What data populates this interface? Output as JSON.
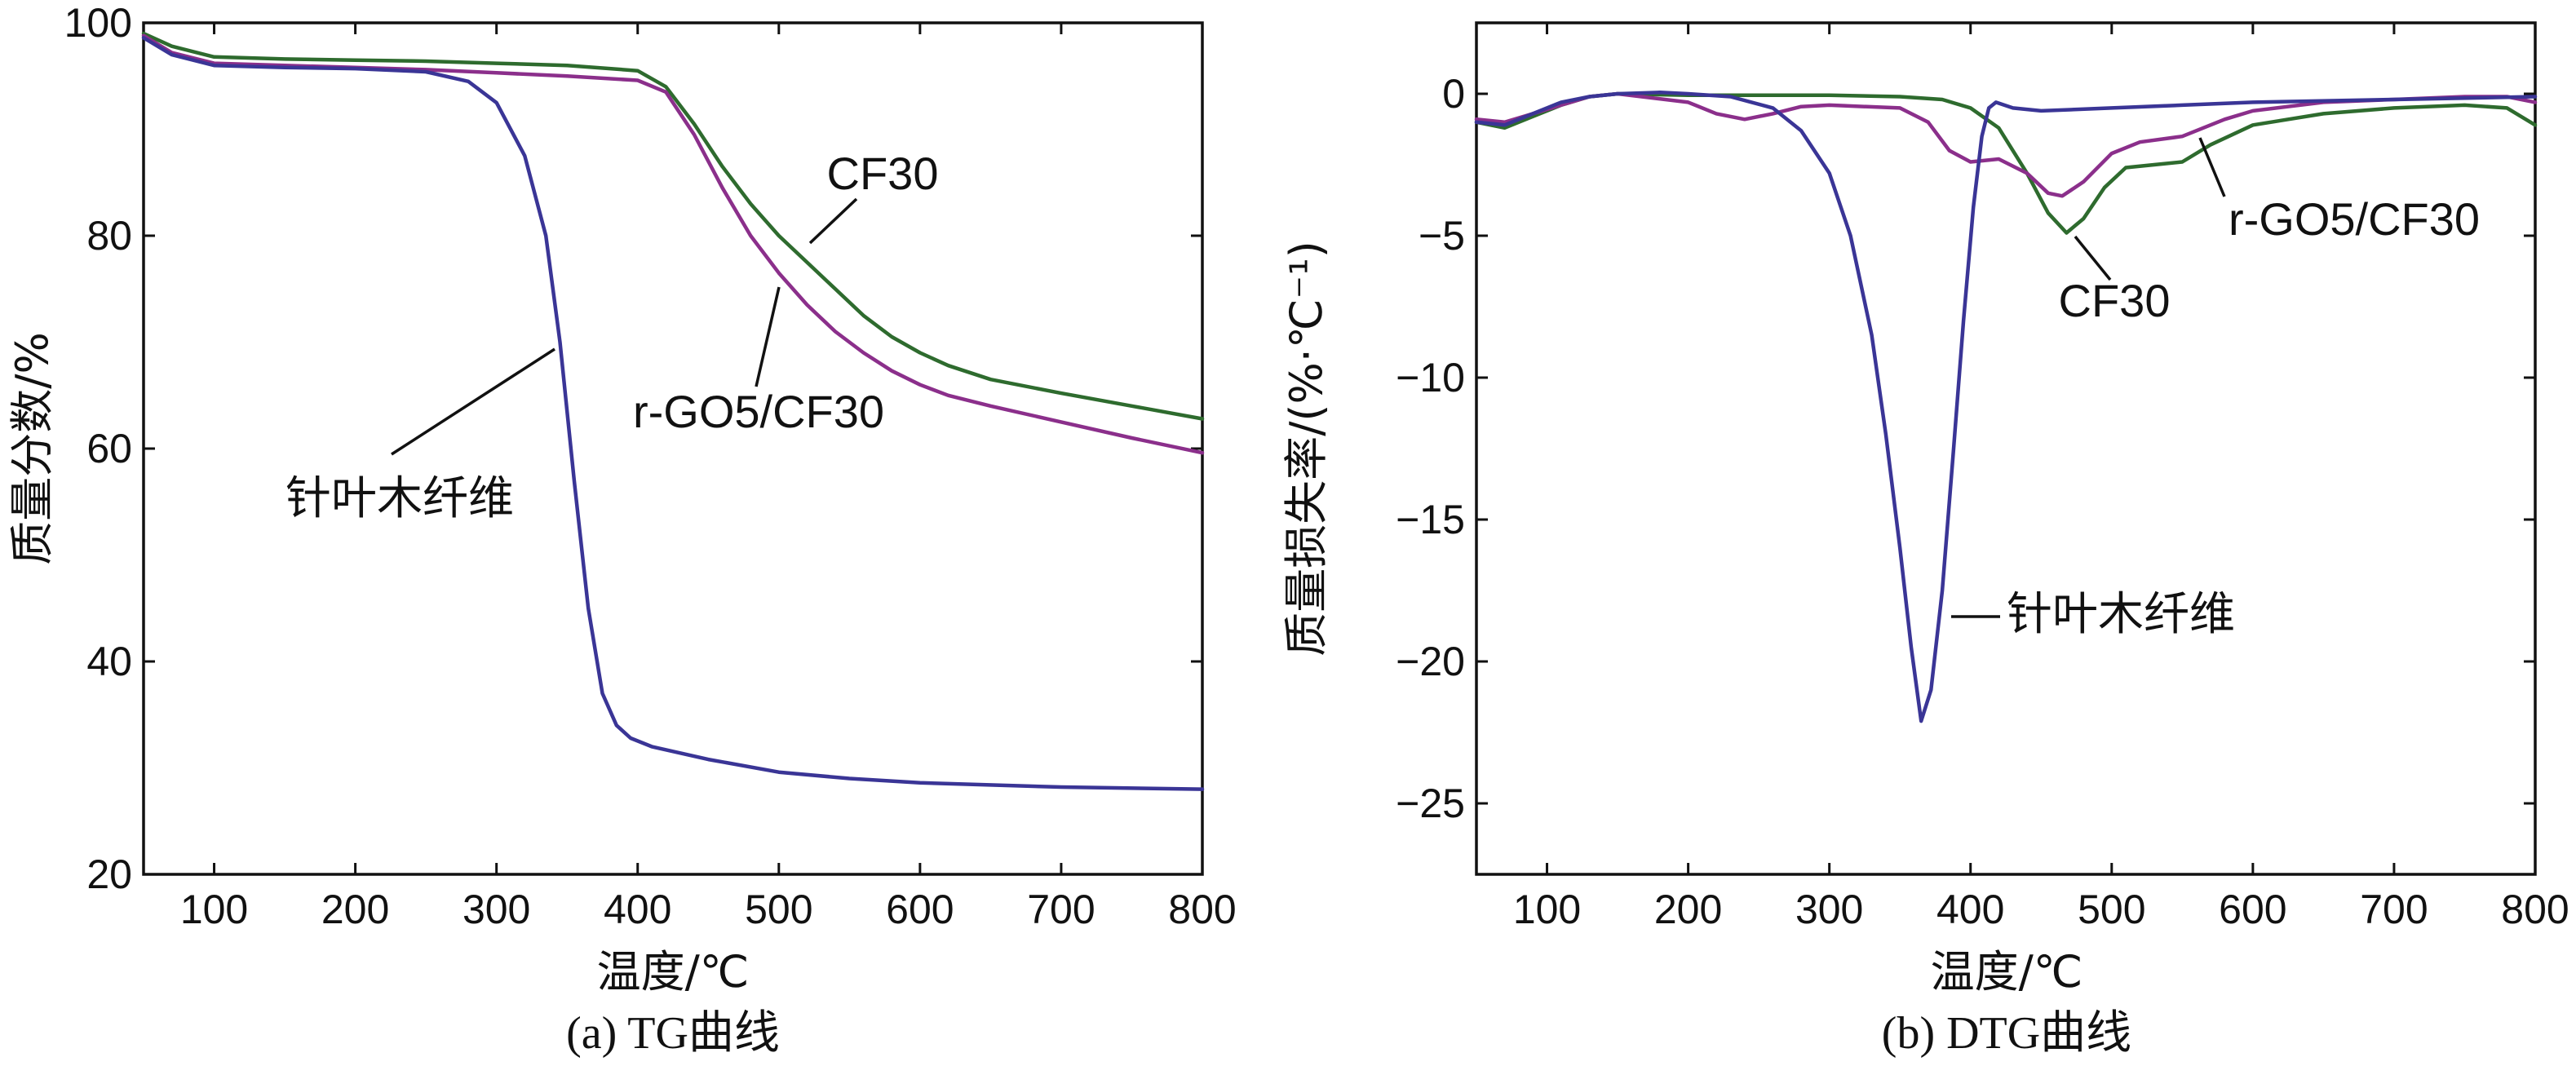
{
  "chart_data": [
    {
      "id": "tg",
      "type": "line",
      "caption": "(a) TG曲线",
      "xlabel": "温度/℃",
      "ylabel": "质量分数/%",
      "xlim": [
        50,
        800
      ],
      "ylim": [
        20,
        100
      ],
      "xticks": [
        100,
        200,
        300,
        400,
        500,
        600,
        700,
        800
      ],
      "yticks": [
        20,
        40,
        60,
        80,
        100
      ],
      "grid": false,
      "series": [
        {
          "name": "CF30",
          "color": "#2e6b2e",
          "x": [
            50,
            70,
            100,
            150,
            200,
            250,
            300,
            350,
            400,
            420,
            440,
            460,
            480,
            500,
            520,
            540,
            560,
            580,
            600,
            620,
            650,
            700,
            750,
            800
          ],
          "y": [
            99,
            97.8,
            96.8,
            96.6,
            96.5,
            96.4,
            96.2,
            96.0,
            95.5,
            94.0,
            90.5,
            86.5,
            83.0,
            80.0,
            77.5,
            75.0,
            72.5,
            70.5,
            69.0,
            67.8,
            66.5,
            65.2,
            64.0,
            62.8
          ]
        },
        {
          "name": "r-GO5/CF30",
          "color": "#8b2f8b",
          "x": [
            50,
            70,
            100,
            150,
            200,
            250,
            300,
            350,
            400,
            420,
            440,
            460,
            480,
            500,
            520,
            540,
            560,
            580,
            600,
            620,
            650,
            700,
            750,
            800
          ],
          "y": [
            98.8,
            97.2,
            96.2,
            96.0,
            95.8,
            95.6,
            95.3,
            95.0,
            94.6,
            93.5,
            89.5,
            84.5,
            80.0,
            76.5,
            73.5,
            71.0,
            69.0,
            67.3,
            66.0,
            65.0,
            64.0,
            62.5,
            61.0,
            59.6
          ]
        },
        {
          "name": "针叶木纤维",
          "color": "#3a3596",
          "x": [
            50,
            70,
            100,
            150,
            200,
            250,
            280,
            300,
            320,
            335,
            345,
            355,
            365,
            375,
            385,
            395,
            410,
            450,
            500,
            550,
            600,
            700,
            800
          ],
          "y": [
            98.6,
            97.0,
            96.0,
            95.8,
            95.7,
            95.4,
            94.5,
            92.5,
            87.5,
            80.0,
            70.0,
            57.0,
            45.0,
            37.0,
            34.0,
            32.8,
            32.0,
            30.8,
            29.6,
            29.0,
            28.6,
            28.2,
            28.0
          ]
        }
      ],
      "annotations": [
        {
          "text": "CF30",
          "series": "CF30"
        },
        {
          "text": "r-GO5/CF30",
          "series": "r-GO5/CF30"
        },
        {
          "text": "针叶木纤维",
          "series": "针叶木纤维"
        }
      ]
    },
    {
      "id": "dtg",
      "type": "line",
      "caption": "(b) DTG曲线",
      "xlabel": "温度/℃",
      "ylabel": "质量损失率/(%·℃⁻¹)",
      "xlim": [
        50,
        800
      ],
      "ylim": [
        -27.5,
        2.5
      ],
      "xticks": [
        100,
        200,
        300,
        400,
        500,
        600,
        700,
        800
      ],
      "yticks": [
        0,
        -5,
        -10,
        -15,
        -20,
        -25
      ],
      "grid": false,
      "series": [
        {
          "name": "CF30",
          "color": "#2e6b2e",
          "x": [
            50,
            70,
            90,
            110,
            130,
            150,
            200,
            250,
            300,
            350,
            380,
            400,
            420,
            440,
            455,
            468,
            480,
            495,
            510,
            530,
            550,
            570,
            600,
            650,
            700,
            750,
            780,
            800
          ],
          "y": [
            -1.0,
            -1.2,
            -0.8,
            -0.4,
            -0.1,
            0.0,
            -0.05,
            -0.05,
            -0.05,
            -0.1,
            -0.2,
            -0.5,
            -1.2,
            -2.8,
            -4.2,
            -4.9,
            -4.4,
            -3.3,
            -2.6,
            -2.5,
            -2.4,
            -1.8,
            -1.1,
            -0.7,
            -0.5,
            -0.4,
            -0.5,
            -1.1
          ]
        },
        {
          "name": "r-GO5/CF30",
          "color": "#8b2f8b",
          "x": [
            50,
            70,
            90,
            110,
            130,
            150,
            200,
            220,
            240,
            260,
            280,
            300,
            350,
            370,
            385,
            400,
            420,
            440,
            455,
            465,
            480,
            500,
            520,
            550,
            580,
            600,
            650,
            700,
            750,
            780,
            800
          ],
          "y": [
            -0.9,
            -1.0,
            -0.7,
            -0.4,
            -0.1,
            0.0,
            -0.3,
            -0.7,
            -0.9,
            -0.7,
            -0.45,
            -0.4,
            -0.5,
            -1.0,
            -2.0,
            -2.4,
            -2.3,
            -2.8,
            -3.5,
            -3.6,
            -3.1,
            -2.1,
            -1.7,
            -1.5,
            -0.9,
            -0.6,
            -0.3,
            -0.2,
            -0.1,
            -0.1,
            -0.3
          ]
        },
        {
          "name": "针叶木纤维",
          "color": "#3a3596",
          "x": [
            50,
            70,
            90,
            110,
            130,
            150,
            180,
            200,
            230,
            260,
            280,
            300,
            315,
            330,
            340,
            350,
            358,
            365,
            372,
            380,
            388,
            395,
            402,
            408,
            413,
            418,
            430,
            450,
            500,
            550,
            600,
            700,
            800
          ],
          "y": [
            -1.0,
            -1.1,
            -0.7,
            -0.3,
            -0.1,
            0.0,
            0.05,
            0.0,
            -0.1,
            -0.5,
            -1.3,
            -2.8,
            -5.0,
            -8.5,
            -12.0,
            -16.0,
            -19.5,
            -22.1,
            -21.0,
            -17.5,
            -12.5,
            -8.0,
            -4.0,
            -1.5,
            -0.5,
            -0.3,
            -0.5,
            -0.6,
            -0.5,
            -0.4,
            -0.3,
            -0.2,
            -0.1
          ]
        }
      ],
      "annotations": [
        {
          "text": "r-GO5/CF30",
          "series": "r-GO5/CF30"
        },
        {
          "text": "CF30",
          "series": "CF30"
        },
        {
          "text": "针叶木纤维",
          "series": "针叶木纤维"
        }
      ]
    }
  ]
}
